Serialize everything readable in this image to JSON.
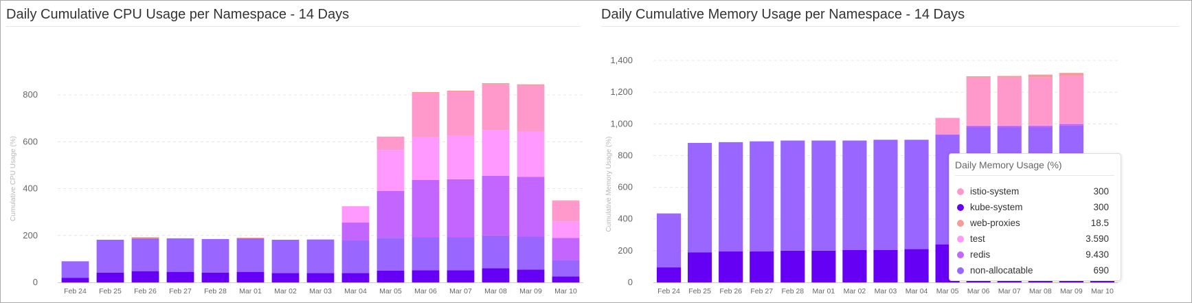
{
  "chart_data": [
    {
      "type": "bar",
      "title": "Daily Cumulative CPU Usage per Namespace - 14 Days",
      "ylabel": "Cumulative CPU Usage (%)",
      "xlabel": "",
      "stacked": true,
      "ylim": [
        0,
        900
      ],
      "yticks": [
        0,
        200,
        400,
        600,
        800
      ],
      "categories": [
        "Feb 24",
        "Feb 25",
        "Feb 26",
        "Feb 27",
        "Feb 28",
        "Mar 01",
        "Mar 02",
        "Mar 03",
        "Mar 04",
        "Mar 05",
        "Mar 06",
        "Mar 07",
        "Mar 08",
        "Mar 09",
        "Mar 10"
      ],
      "series": [
        {
          "name": "kube-system",
          "color": "#6500f5",
          "values": [
            20,
            42,
            48,
            45,
            42,
            45,
            40,
            40,
            40,
            50,
            52,
            52,
            60,
            55,
            25
          ]
        },
        {
          "name": "non-allocatable",
          "color": "#9966ff",
          "values": [
            70,
            140,
            140,
            143,
            143,
            143,
            142,
            143,
            140,
            140,
            140,
            140,
            140,
            140,
            70
          ]
        },
        {
          "name": "redis",
          "color": "#c266ff",
          "values": [
            0,
            0,
            0,
            0,
            0,
            0,
            0,
            0,
            75,
            200,
            245,
            248,
            255,
            255,
            95
          ]
        },
        {
          "name": "test",
          "color": "#ff99ff",
          "values": [
            0,
            0,
            0,
            0,
            0,
            0,
            0,
            0,
            70,
            175,
            182,
            185,
            195,
            195,
            70
          ]
        },
        {
          "name": "istio-system",
          "color": "#ff99cc",
          "values": [
            0,
            0,
            0,
            0,
            0,
            0,
            0,
            0,
            0,
            55,
            190,
            190,
            195,
            195,
            88
          ]
        },
        {
          "name": "web-proxies",
          "color": "#f59b9b",
          "values": [
            0,
            0,
            5,
            0,
            0,
            3,
            0,
            0,
            0,
            2,
            3,
            3,
            5,
            5,
            2
          ]
        }
      ]
    },
    {
      "type": "bar",
      "title": "Daily Cumulative Memory Usage per Namespace - 14 Days",
      "ylabel": "Cumulative Memory Usage (%)",
      "xlabel": "",
      "stacked": true,
      "ylim": [
        0,
        1500
      ],
      "yticks": [
        0,
        200,
        400,
        600,
        800,
        1000,
        1200,
        1400
      ],
      "categories": [
        "Feb 24",
        "Feb 25",
        "Feb 26",
        "Feb 27",
        "Feb 28",
        "Mar 01",
        "Mar 02",
        "Mar 03",
        "Mar 04",
        "Mar 05",
        "Mar 06",
        "Mar 07",
        "Mar 08",
        "Mar 09",
        "Mar 10"
      ],
      "series": [
        {
          "name": "kube-system",
          "color": "#6500f5",
          "values": [
            95,
            190,
            195,
            195,
            200,
            200,
            205,
            205,
            210,
            240,
            290,
            290,
            290,
            300,
            145
          ]
        },
        {
          "name": "non-allocatable",
          "color": "#9966ff",
          "values": [
            340,
            690,
            690,
            695,
            695,
            695,
            690,
            695,
            690,
            690,
            690,
            690,
            690,
            690,
            340
          ]
        },
        {
          "name": "redis",
          "color": "#c266ff",
          "values": [
            0,
            0,
            0,
            0,
            0,
            0,
            0,
            0,
            0,
            4,
            9,
            9,
            9.4,
            9.43,
            4
          ]
        },
        {
          "name": "test",
          "color": "#ff99ff",
          "values": [
            0,
            0,
            0,
            0,
            0,
            0,
            0,
            0,
            0,
            2,
            3.6,
            3.6,
            3.6,
            3.59,
            2
          ]
        },
        {
          "name": "istio-system",
          "color": "#ff99cc",
          "values": [
            0,
            0,
            0,
            0,
            0,
            0,
            0,
            0,
            0,
            100,
            300,
            300,
            300,
            300,
            140
          ]
        },
        {
          "name": "web-proxies",
          "color": "#f59b9b",
          "values": [
            0,
            0,
            0,
            0,
            0,
            0,
            0,
            0,
            0,
            2,
            8,
            10,
            18,
            18.5,
            5
          ]
        }
      ]
    }
  ],
  "tooltip": {
    "title": "Daily Memory Usage (%)",
    "rows": [
      {
        "name": "istio-system",
        "value": "300",
        "color": "#ff99cc"
      },
      {
        "name": "kube-system",
        "value": "300",
        "color": "#6500f5"
      },
      {
        "name": "web-proxies",
        "value": "18.5",
        "color": "#f59b9b"
      },
      {
        "name": "test",
        "value": "3.590",
        "color": "#ff99ff"
      },
      {
        "name": "redis",
        "value": "9.430",
        "color": "#c266ff"
      },
      {
        "name": "non-allocatable",
        "value": "690",
        "color": "#9966ff"
      }
    ]
  }
}
